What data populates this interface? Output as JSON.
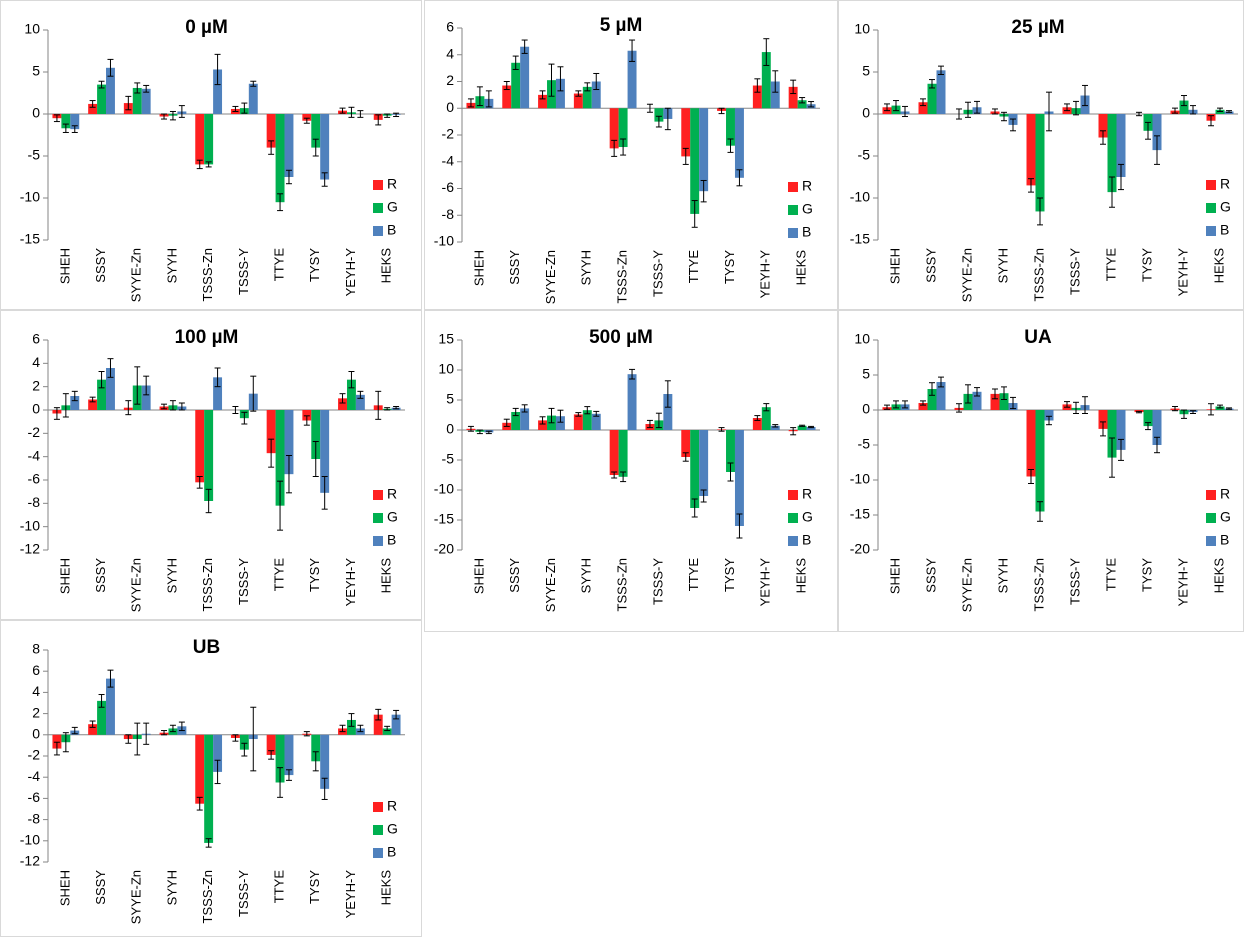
{
  "chart_data": [
    {
      "type": "bar",
      "title": "0 µM",
      "categories": [
        "SHEH",
        "SSSY",
        "SYYE-Zn",
        "SYYH",
        "TSSS-Zn",
        "TSSS-Y",
        "TTYE",
        "TYSY",
        "YEYH-Y",
        "HEKS"
      ],
      "series": [
        {
          "name": "R",
          "color": "#ff2020",
          "values": [
            -0.5,
            1.2,
            1.3,
            -0.3,
            -6,
            0.6,
            -4,
            -0.8,
            0.4,
            -0.7
          ],
          "errors": [
            0.4,
            0.4,
            0.8,
            0.3,
            0.5,
            0.3,
            0.8,
            0.3,
            0.3,
            0.6
          ]
        },
        {
          "name": "G",
          "color": "#00b050",
          "values": [
            -1.7,
            3.5,
            3.1,
            -0.2,
            -6,
            0.7,
            -10.5,
            -4,
            0.2,
            -0.2
          ],
          "errors": [
            0.5,
            0.4,
            0.6,
            0.5,
            0.3,
            0.6,
            1,
            1,
            0.6,
            0.2
          ]
        },
        {
          "name": "B",
          "color": "#4f81bd",
          "values": [
            -1.8,
            5.5,
            3,
            0.3,
            5.3,
            3.6,
            -7.5,
            -7.8,
            0,
            -0.1
          ],
          "errors": [
            0.4,
            1,
            0.4,
            0.7,
            1.8,
            0.3,
            0.8,
            0.8,
            0.4,
            0.2
          ]
        }
      ],
      "ylim": [
        -15,
        10
      ],
      "yticks": [
        -15,
        -10,
        -5,
        0,
        5,
        10
      ]
    },
    {
      "type": "bar",
      "title": "5 µM",
      "categories": [
        "SHEH",
        "SSSY",
        "SYYE-Zn",
        "SYYH",
        "TSSS-Zn",
        "TSSS-Y",
        "TTYE",
        "TYSY",
        "YEYH-Y",
        "HEKS"
      ],
      "series": [
        {
          "name": "R",
          "color": "#ff2020",
          "values": [
            0.4,
            1.7,
            1,
            1.1,
            -3,
            0,
            -3.6,
            -0.2,
            1.7,
            1.6
          ],
          "errors": [
            0.3,
            0.3,
            0.3,
            0.2,
            0.6,
            0.3,
            0.6,
            0.2,
            0.5,
            0.5
          ]
        },
        {
          "name": "G",
          "color": "#00b050",
          "values": [
            0.9,
            3.4,
            2.1,
            1.6,
            -2.9,
            -1,
            -7.9,
            -2.8,
            4.2,
            0.6
          ],
          "errors": [
            0.7,
            0.5,
            1.2,
            0.3,
            0.6,
            0.4,
            1,
            0.5,
            1,
            0.2
          ]
        },
        {
          "name": "B",
          "color": "#4f81bd",
          "values": [
            0.7,
            4.6,
            2.2,
            2,
            4.3,
            -0.8,
            -6.2,
            -5.2,
            2,
            0.3
          ],
          "errors": [
            0.6,
            0.5,
            0.9,
            0.6,
            0.8,
            0.8,
            0.8,
            0.6,
            0.8,
            0.2
          ]
        }
      ],
      "ylim": [
        -10,
        6
      ],
      "yticks": [
        -10,
        -8,
        -6,
        -4,
        -2,
        0,
        2,
        4,
        6
      ]
    },
    {
      "type": "bar",
      "title": "25 µM",
      "categories": [
        "SHEH",
        "SSSY",
        "SYYE-Zn",
        "SYYH",
        "TSSS-Zn",
        "TSSS-Y",
        "TTYE",
        "TYSY",
        "YEYH-Y",
        "HEKS"
      ],
      "series": [
        {
          "name": "R",
          "color": "#ff2020",
          "values": [
            0.8,
            1.4,
            0,
            0.3,
            -8.5,
            0.8,
            -2.8,
            0,
            0.4,
            -0.8
          ],
          "errors": [
            0.4,
            0.4,
            0.6,
            0.3,
            0.8,
            0.4,
            0.8,
            0.2,
            0.3,
            0.6
          ]
        },
        {
          "name": "G",
          "color": "#00b050",
          "values": [
            1,
            3.6,
            0.5,
            -0.3,
            -11.6,
            0.7,
            -9.3,
            -2,
            1.6,
            0.5
          ],
          "errors": [
            0.6,
            0.5,
            0.9,
            0.5,
            1.6,
            0.8,
            1.8,
            1,
            0.6,
            0.2
          ]
        },
        {
          "name": "B",
          "color": "#4f81bd",
          "values": [
            0.3,
            5.2,
            0.8,
            -1.3,
            0.3,
            2.2,
            -7.5,
            -4.3,
            0.5,
            0.3
          ],
          "errors": [
            0.6,
            0.5,
            0.7,
            0.7,
            2.3,
            1.2,
            1.5,
            1.7,
            0.5,
            0.1
          ]
        }
      ],
      "ylim": [
        -15,
        10
      ],
      "yticks": [
        -15,
        -10,
        -5,
        0,
        5,
        10
      ]
    },
    {
      "type": "bar",
      "title": "100 µM",
      "categories": [
        "SHEH",
        "SSSY",
        "SYYE-Zn",
        "SYYH",
        "TSSS-Zn",
        "TSSS-Y",
        "TTYE",
        "TYSY",
        "YEYH-Y",
        "HEKS"
      ],
      "series": [
        {
          "name": "R",
          "color": "#ff2020",
          "values": [
            -0.3,
            0.9,
            0.2,
            0.3,
            -6.2,
            0,
            -3.7,
            -0.9,
            1,
            0.4
          ],
          "errors": [
            0.5,
            0.2,
            0.6,
            0.2,
            0.5,
            0.3,
            1.2,
            0.4,
            0.4,
            1.2
          ]
        },
        {
          "name": "G",
          "color": "#00b050",
          "values": [
            0.4,
            2.6,
            2.1,
            0.4,
            -7.8,
            -0.7,
            -8.2,
            -4.2,
            2.6,
            0.1
          ],
          "errors": [
            1,
            0.7,
            1.6,
            0.4,
            1,
            0.5,
            2.1,
            1.5,
            0.7,
            0.1
          ]
        },
        {
          "name": "B",
          "color": "#4f81bd",
          "values": [
            1.2,
            3.6,
            2.1,
            0.3,
            2.8,
            1.4,
            -5.5,
            -7.1,
            1.3,
            0.2
          ],
          "errors": [
            0.4,
            0.8,
            0.8,
            0.3,
            0.8,
            1.5,
            1.6,
            1.4,
            0.3,
            0.1
          ]
        }
      ],
      "ylim": [
        -12,
        6
      ],
      "yticks": [
        -12,
        -10,
        -8,
        -6,
        -4,
        -2,
        0,
        2,
        4,
        6
      ]
    },
    {
      "type": "bar",
      "title": "500 µM",
      "categories": [
        "SHEH",
        "SSSY",
        "SYYE-Zn",
        "SYYH",
        "TSSS-Zn",
        "TSSS-Y",
        "TTYE",
        "TYSY",
        "YEYH-Y",
        "HEKS"
      ],
      "series": [
        {
          "name": "R",
          "color": "#ff2020",
          "values": [
            0.2,
            1.2,
            1.6,
            2.6,
            -7.5,
            1,
            -4.5,
            0.1,
            2,
            -0.2
          ],
          "errors": [
            0.4,
            0.6,
            0.6,
            0.3,
            0.5,
            0.6,
            0.7,
            0.3,
            0.4,
            0.6
          ]
        },
        {
          "name": "G",
          "color": "#00b050",
          "values": [
            -0.3,
            3,
            2.4,
            3.3,
            -7.8,
            1.6,
            -13,
            -7,
            3.8,
            0.7
          ],
          "errors": [
            0.3,
            0.6,
            1.2,
            0.6,
            0.8,
            1.2,
            1.5,
            1.5,
            0.6,
            0.1
          ]
        },
        {
          "name": "B",
          "color": "#4f81bd",
          "values": [
            -0.4,
            3.6,
            2.3,
            2.7,
            9.3,
            6,
            -11,
            -16,
            0.7,
            0.5
          ],
          "errors": [
            0.2,
            0.6,
            1,
            0.4,
            0.8,
            2.2,
            1,
            2,
            0.2,
            0.1
          ]
        }
      ],
      "ylim": [
        -20,
        15
      ],
      "yticks": [
        -20,
        -15,
        -10,
        -5,
        0,
        5,
        10,
        15
      ]
    },
    {
      "type": "bar",
      "title": "UA",
      "categories": [
        "SHEH",
        "SSSY",
        "SYYE-Zn",
        "SYYH",
        "TSSS-Zn",
        "TSSS-Y",
        "TTYE",
        "TYSY",
        "YEYH-Y",
        "HEKS"
      ],
      "series": [
        {
          "name": "R",
          "color": "#ff2020",
          "values": [
            0.4,
            1,
            0.3,
            2.3,
            -9.5,
            0.8,
            -2.7,
            -0.3,
            0.2,
            0.1
          ],
          "errors": [
            0.3,
            0.3,
            0.6,
            0.7,
            1,
            0.4,
            1,
            0.1,
            0.3,
            0.8
          ]
        },
        {
          "name": "G",
          "color": "#00b050",
          "values": [
            0.8,
            3,
            2.3,
            2.4,
            -14.5,
            0.3,
            -6.8,
            -2.3,
            -0.6,
            0.5
          ],
          "errors": [
            0.5,
            0.9,
            1.3,
            0.9,
            1.4,
            0.8,
            2.8,
            0.5,
            0.6,
            0.2
          ]
        },
        {
          "name": "B",
          "color": "#4f81bd",
          "values": [
            0.8,
            4,
            2.6,
            1,
            -1.5,
            0.7,
            -5.7,
            -5,
            -0.3,
            0.2
          ],
          "errors": [
            0.5,
            0.7,
            0.6,
            0.8,
            0.6,
            1.2,
            1.5,
            1.1,
            0.2,
            0.1
          ]
        }
      ],
      "ylim": [
        -20,
        10
      ],
      "yticks": [
        -20,
        -15,
        -10,
        -5,
        0,
        5,
        10
      ]
    },
    {
      "type": "bar",
      "title": "UB",
      "categories": [
        "SHEH",
        "SSSY",
        "SYYE-Zn",
        "SYYH",
        "TSSS-Zn",
        "TSSS-Y",
        "TTYE",
        "TYSY",
        "YEYH-Y",
        "HEKS"
      ],
      "series": [
        {
          "name": "R",
          "color": "#ff2020",
          "values": [
            -1.3,
            1,
            -0.4,
            0.2,
            -6.5,
            -0.3,
            -1.9,
            0.1,
            0.6,
            1.9
          ],
          "errors": [
            0.6,
            0.3,
            0.4,
            0.2,
            0.6,
            0.3,
            0.4,
            0.2,
            0.3,
            0.5
          ]
        },
        {
          "name": "G",
          "color": "#00b050",
          "values": [
            -0.7,
            3.2,
            -0.4,
            0.6,
            -10.2,
            -1.4,
            -4.5,
            -2.5,
            1.4,
            0.6
          ],
          "errors": [
            0.9,
            0.6,
            1.5,
            0.3,
            0.4,
            0.6,
            1.4,
            0.9,
            0.6,
            0.2
          ]
        },
        {
          "name": "B",
          "color": "#4f81bd",
          "values": [
            0.4,
            5.3,
            0.1,
            0.8,
            -3.5,
            -0.4,
            -3.8,
            -5.1,
            0.6,
            1.9
          ],
          "errors": [
            0.3,
            0.8,
            1,
            0.4,
            1.1,
            3,
            0.5,
            1,
            0.3,
            0.4
          ]
        }
      ],
      "ylim": [
        -12,
        8
      ],
      "yticks": [
        -12,
        -10,
        -8,
        -6,
        -4,
        -2,
        0,
        2,
        4,
        6,
        8
      ]
    }
  ]
}
